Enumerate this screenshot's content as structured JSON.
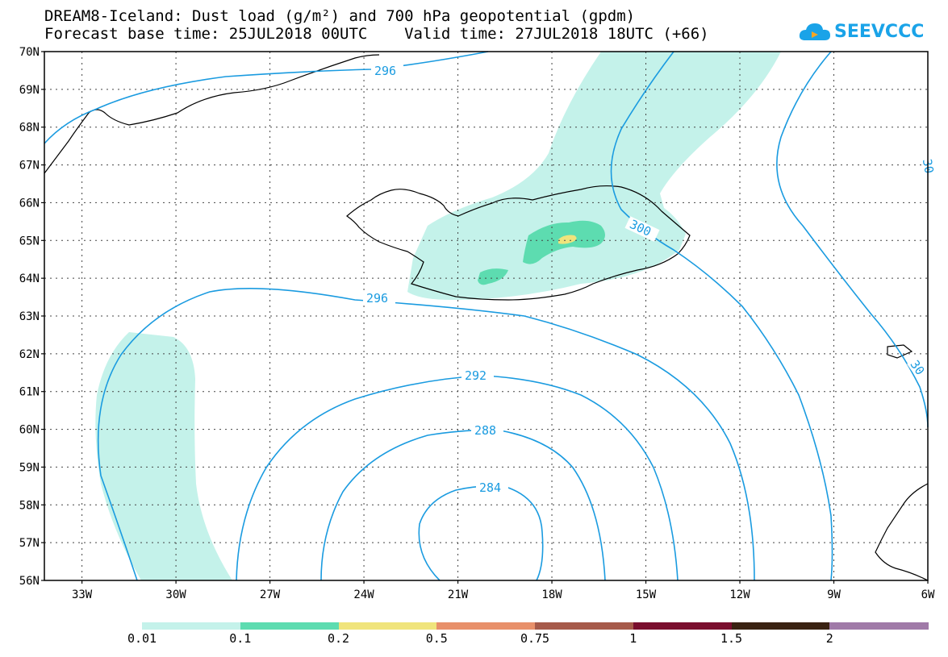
{
  "title_line1": "DREAM8-Iceland: Dust load (g/m²) and 700 hPa geopotential (gpdm)",
  "title_line2": "Forecast base time: 25JUL2018 00UTC    Valid time: 27JUL2018 18UTC (+66)",
  "logo_text": "SEEVCCC",
  "lat_labels": [
    "70N",
    "69N",
    "68N",
    "67N",
    "66N",
    "65N",
    "64N",
    "63N",
    "62N",
    "61N",
    "60N",
    "59N",
    "58N",
    "57N",
    "56N"
  ],
  "lon_labels": [
    "33W",
    "30W",
    "27W",
    "24W",
    "21W",
    "18W",
    "15W",
    "12W",
    "9W",
    "6W"
  ],
  "contour_labels": [
    "296",
    "296",
    "300",
    "292",
    "288",
    "284",
    "30",
    "30"
  ],
  "legend": {
    "labels": [
      "0.01",
      "0.1",
      "0.2",
      "0.5",
      "0.75",
      "1",
      "1.5",
      "2"
    ],
    "colors": [
      "#c4f2ea",
      "#5ddcb0",
      "#f0e47c",
      "#e8906a",
      "#a65a4a",
      "#7a0e2e",
      "#3a2212",
      "#a07aa8"
    ]
  },
  "colors": {
    "contour": "#1a9be0",
    "dust_low": "#c4f2ea",
    "dust_mid": "#5ddcb0",
    "dust_high": "#f0e47c"
  }
}
